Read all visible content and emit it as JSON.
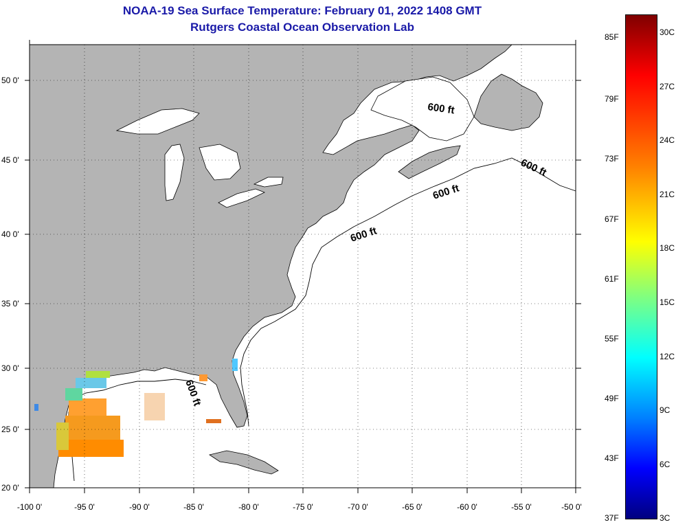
{
  "header": {
    "title": "NOAA-19 Sea Surface Temperature:  February 01, 2022 1408 GMT",
    "subtitle": "Rutgers Coastal Ocean Observation Lab"
  },
  "map": {
    "extent": {
      "lon_min": -100,
      "lon_max": -50,
      "lat_min": 20,
      "lat_max": 52.5
    },
    "lat_ticks": [
      "50 0'",
      "45 0'",
      "40 0'",
      "35 0'",
      "30 0'",
      "25 0'",
      "20 0'"
    ],
    "lon_ticks": [
      "-100 0'",
      "-95 0'",
      "-90 0'",
      "-85 0'",
      "-80 0'",
      "-75 0'",
      "-70 0'",
      "-65 0'",
      "-60 0'",
      "-55 0'",
      "-50 0'"
    ],
    "grid": "dotted",
    "land_color": "#b4b4b4",
    "ocean_color": "#ffffff",
    "contour_labels": [
      "600 ft",
      "600 ft",
      "600 ft",
      "600 ft",
      "600 ft"
    ]
  },
  "colorbar": {
    "fahrenheit_labels": [
      "85F",
      "79F",
      "73F",
      "67F",
      "61F",
      "55F",
      "49F",
      "43F",
      "37F"
    ],
    "celsius_labels": [
      "30C",
      "27C",
      "24C",
      "21C",
      "18C",
      "15C",
      "12C",
      "9C",
      "6C",
      "3C"
    ]
  }
}
